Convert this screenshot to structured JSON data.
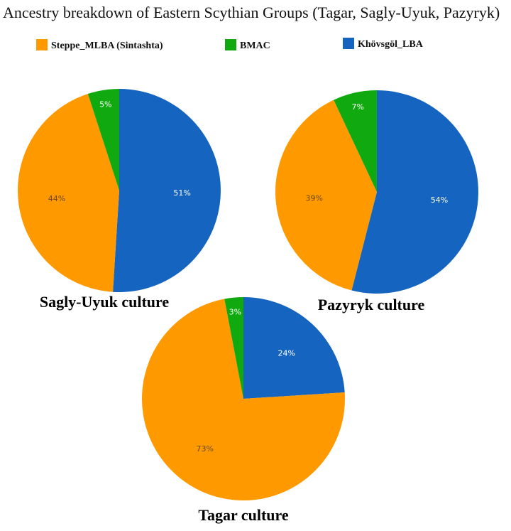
{
  "title": "Ancestry breakdown of Eastern Scythian Groups (Tagar, Sagly-Uyuk, Pazyryk)",
  "legend": [
    {
      "name": "Steppe_MLBA (Sintashta)",
      "color": "#ff9900"
    },
    {
      "name": "BMAC",
      "color": "#10aa10"
    },
    {
      "name": "Khövsgöl_LBA",
      "color": "#1565c0"
    }
  ],
  "chart_data": [
    {
      "type": "pie",
      "title": "Sagly-Uyuk culture",
      "slices": [
        {
          "label": "Khövsgöl_LBA",
          "value": 51,
          "text": "51%"
        },
        {
          "label": "Steppe_MLBA (Sintashta)",
          "value": 44,
          "text": "44%"
        },
        {
          "label": "BMAC",
          "value": 5,
          "text": "5%"
        }
      ]
    },
    {
      "type": "pie",
      "title": "Pazyryk culture",
      "slices": [
        {
          "label": "Khövsgöl_LBA",
          "value": 54,
          "text": "54%"
        },
        {
          "label": "Steppe_MLBA (Sintashta)",
          "value": 39,
          "text": "39%"
        },
        {
          "label": "BMAC",
          "value": 7,
          "text": "7%"
        }
      ]
    },
    {
      "type": "pie",
      "title": "Tagar culture",
      "slices": [
        {
          "label": "Khövsgöl_LBA",
          "value": 24,
          "text": "24%"
        },
        {
          "label": "Steppe_MLBA (Sintashta)",
          "value": 73,
          "text": "73%"
        },
        {
          "label": "BMAC",
          "value": 3,
          "text": "3%"
        }
      ]
    }
  ]
}
